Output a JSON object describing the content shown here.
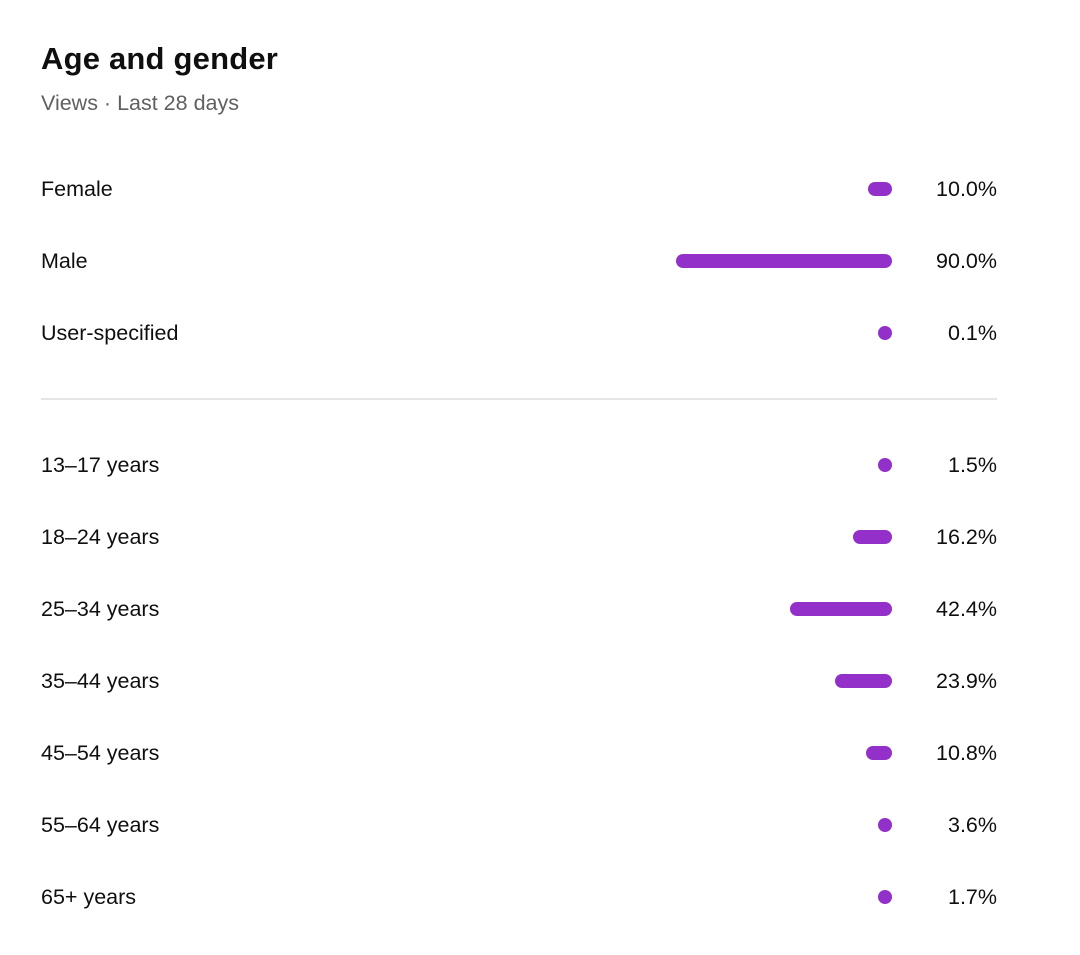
{
  "header": {
    "title": "Age and gender",
    "subtitle": "Views · Last 28 days"
  },
  "colors": {
    "bar": "#9230c9",
    "divider": "#e5e5e5",
    "subtitle": "#606060"
  },
  "chart_data": [
    {
      "type": "bar",
      "orientation": "horizontal",
      "categories": [
        "Female",
        "Male",
        "User-specified"
      ],
      "values": [
        10.0,
        90.0,
        0.1
      ],
      "value_labels": [
        "10.0%",
        "90.0%",
        "0.1%"
      ],
      "unit": "%",
      "xlim": [
        0,
        100
      ]
    },
    {
      "type": "bar",
      "orientation": "horizontal",
      "categories": [
        "13–17 years",
        "18–24 years",
        "25–34 years",
        "35–44 years",
        "45–54 years",
        "55–64 years",
        "65+ years"
      ],
      "values": [
        1.5,
        16.2,
        42.4,
        23.9,
        10.8,
        3.6,
        1.7
      ],
      "value_labels": [
        "1.5%",
        "16.2%",
        "42.4%",
        "23.9%",
        "10.8%",
        "3.6%",
        "1.7%"
      ],
      "unit": "%",
      "xlim": [
        0,
        100
      ]
    }
  ]
}
